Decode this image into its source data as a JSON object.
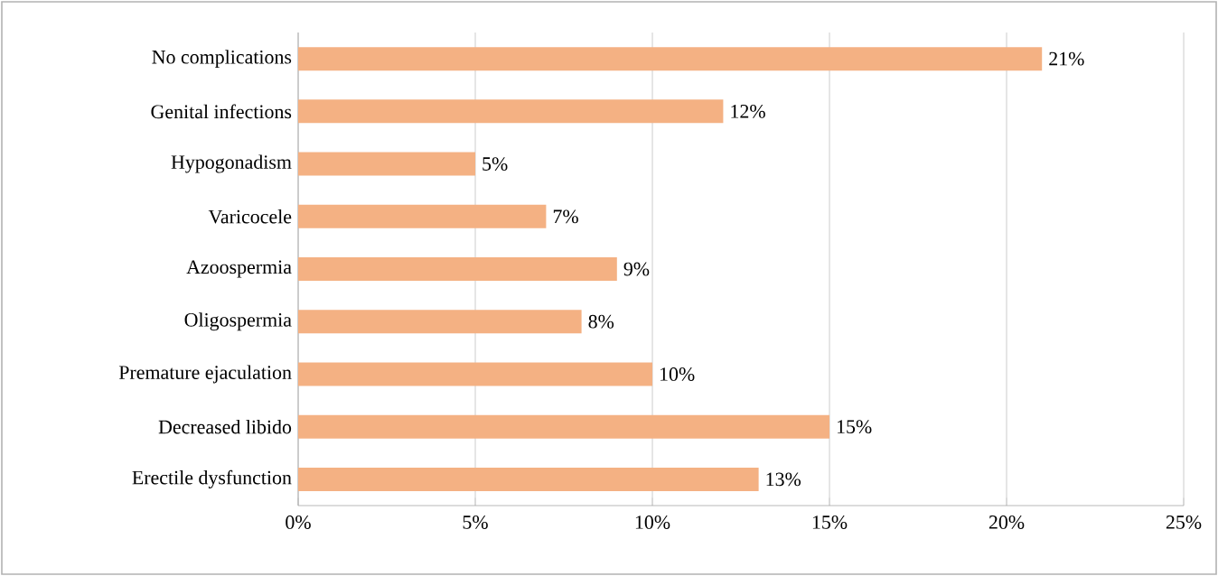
{
  "chart_data": {
    "type": "bar",
    "orientation": "horizontal",
    "categories": [
      "No complications",
      "Genital infections",
      "Hypogonadism",
      "Varicocele",
      "Azoospermia",
      "Oligospermia",
      "Premature ejaculation",
      "Decreased libido",
      "Erectile dysfunction"
    ],
    "values": [
      21,
      12,
      5,
      7,
      9,
      8,
      10,
      15,
      13
    ],
    "value_labels": [
      "21%",
      "12%",
      "5%",
      "7%",
      "9%",
      "8%",
      "10%",
      "15%",
      "13%"
    ],
    "color": "#f4b183",
    "xlim": [
      0,
      25
    ],
    "xticks": [
      {
        "value": 0,
        "label": "0%"
      },
      {
        "value": 5,
        "label": "5%"
      },
      {
        "value": 10,
        "label": "10%"
      },
      {
        "value": 15,
        "label": "15%"
      },
      {
        "value": 20,
        "label": "20%"
      },
      {
        "value": 25,
        "label": "25%"
      }
    ],
    "grid": "x"
  }
}
